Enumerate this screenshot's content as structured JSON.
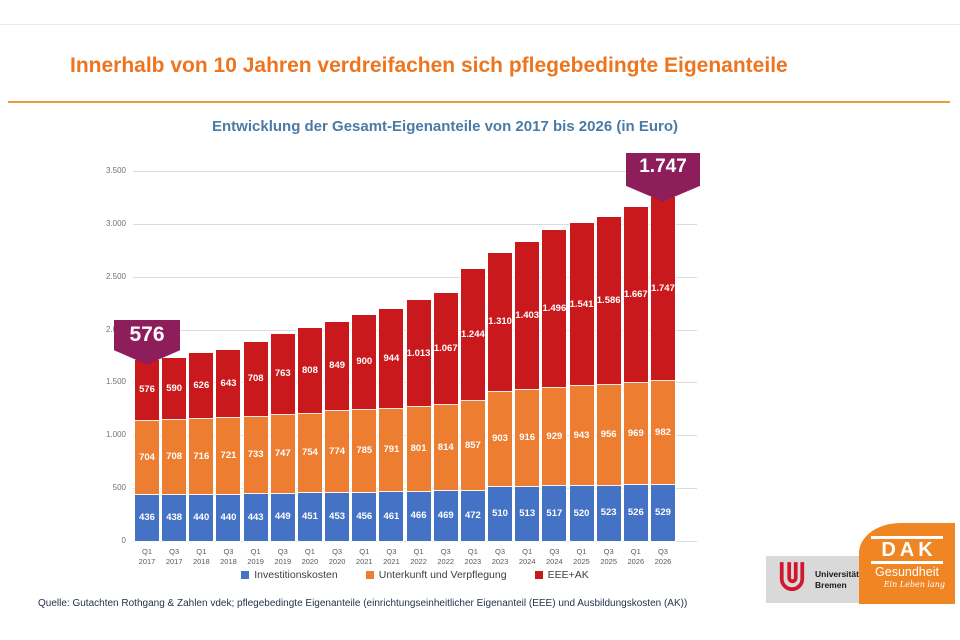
{
  "page": {
    "title": "Innerhalb von 10 Jahren verdreifachen sich pflegebedingte Eigenanteile",
    "source_note": "Quelle: Gutachten Rothgang & Zahlen vdek; pflegebedingte Eigenanteile (einrichtungseinheitlicher Eigenanteil (EEE) und Ausbildungskosten (AK))"
  },
  "colors": {
    "title_orange": "#ee7520",
    "rule_orange": "#e99b3c",
    "subtitle_blue": "#4a7ba6",
    "badge_magenta": "#8e1d5c",
    "series_blue": "#4472c4",
    "series_orange": "#ed7d31",
    "series_red": "#c9191c"
  },
  "chart_data": {
    "type": "bar",
    "stacked": true,
    "title": "Entwicklung der Gesamt-Eigenanteile von 2017 bis 2026 (in Euro)",
    "unit": "Euro",
    "categories": [
      "Q1 2017",
      "Q3 2017",
      "Q1 2018",
      "Q3 2018",
      "Q1 2019",
      "Q3 2019",
      "Q1 2020",
      "Q3 2020",
      "Q1 2021",
      "Q3 2021",
      "Q1 2022",
      "Q3 2022",
      "Q1 2023",
      "Q3 2023",
      "Q1 2024",
      "Q3 2024",
      "Q1 2025",
      "Q3 2025",
      "Q1 2026",
      "Q3 2026"
    ],
    "series": [
      {
        "name": "Investitionskosten",
        "color": "#4472c4",
        "values": [
          436,
          438,
          440,
          440,
          443,
          449,
          451,
          453,
          456,
          461,
          466,
          469,
          472,
          510,
          513,
          517,
          520,
          523,
          526,
          529
        ],
        "labels": [
          "436",
          "438",
          "440",
          "440",
          "443",
          "449",
          "451",
          "453",
          "456",
          "461",
          "466",
          "469",
          "472",
          "510",
          "513",
          "517",
          "520",
          "523",
          "526",
          "529"
        ]
      },
      {
        "name": "Unterkunft und Verpflegung",
        "color": "#ed7d31",
        "values": [
          704,
          708,
          716,
          721,
          733,
          747,
          754,
          774,
          785,
          791,
          801,
          814,
          857,
          903,
          916,
          929,
          943,
          956,
          969,
          982
        ],
        "labels": [
          "704",
          "708",
          "716",
          "721",
          "733",
          "747",
          "754",
          "774",
          "785",
          "791",
          "801",
          "814",
          "857",
          "903",
          "916",
          "929",
          "943",
          "956",
          "969",
          "982"
        ]
      },
      {
        "name": "EEE+AK",
        "color": "#c9191c",
        "values": [
          576,
          590,
          626,
          643,
          708,
          763,
          808,
          849,
          900,
          944,
          1013,
          1067,
          1244,
          1310,
          1403,
          1496,
          1541,
          1586,
          1667,
          1747
        ],
        "labels": [
          "576",
          "590",
          "626",
          "643",
          "708",
          "763",
          "808",
          "849",
          "900",
          "944",
          "1.013",
          "1.067",
          "1.244",
          "1.310",
          "1.403",
          "1.496",
          "1.541",
          "1.586",
          "1.667",
          "1.747"
        ]
      }
    ],
    "ylim": [
      0,
      3500
    ],
    "yticks": {
      "values": [
        0,
        500,
        1000,
        1500,
        2000,
        2500,
        3000,
        3500
      ],
      "labels": [
        "0",
        "500",
        "1.000",
        "1.500",
        "2.000",
        "2.500",
        "3.000",
        "3.500"
      ]
    },
    "grid": true,
    "legend_position": "bottom",
    "callouts": [
      {
        "text": "576",
        "bar_index": 0
      },
      {
        "text": "1.747",
        "bar_index": 19
      }
    ]
  },
  "logos": {
    "uni_bremen": {
      "line1": "Universität",
      "line2": "Bremen"
    },
    "dak": {
      "brand": "DAK",
      "division": "Gesundheit",
      "tagline": "Ein Leben lang"
    }
  }
}
